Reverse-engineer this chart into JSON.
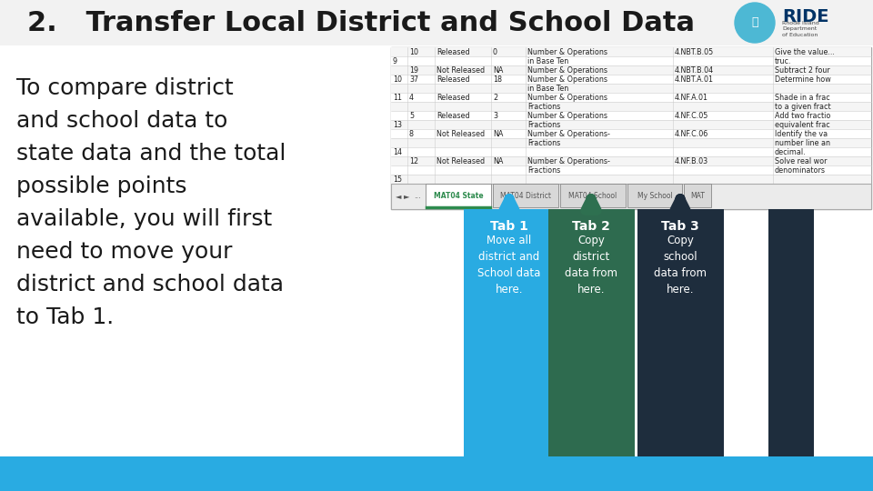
{
  "title": "2.   Transfer Local District and School Data",
  "title_fontsize": 22,
  "title_color": "#1a1a1a",
  "bg_color": "#ffffff",
  "bottom_bar_color": "#29abe2",
  "body_text_lines": [
    "To compare district",
    "and school data to",
    "state data and the total",
    "possible points",
    "available, you will first",
    "need to move your",
    "district and school data",
    "to Tab 1."
  ],
  "body_fontsize": 18,
  "body_color": "#1a1a1a",
  "tab_boxes": [
    {
      "label": "Tab 1",
      "desc": "Move all\ndistrict and\nSchool data\nhere.",
      "color": "#29abe2",
      "arrow_color": "#29abe2"
    },
    {
      "label": "Tab 2",
      "desc": "Copy\ndistrict\ndata from\nhere.",
      "color": "#2e6b4f",
      "arrow_color": "#2e7050"
    },
    {
      "label": "Tab 3",
      "desc": "Copy\nschool\ndata from\nhere.",
      "color": "#1e2d3d",
      "arrow_color": "#1e2d3d"
    }
  ],
  "sheet_rows": [
    [
      "",
      "10",
      "Released",
      "0",
      "Number & Operations",
      "4.NBT.B.05",
      "Give the value..."
    ],
    [
      "9",
      "",
      "",
      "",
      "in Base Ten",
      "",
      "truc."
    ],
    [
      "",
      "19",
      "Not Released",
      "NA",
      "Number & Operations",
      "4.NBT.B.04",
      "Subtract 2 four"
    ],
    [
      "10",
      "37",
      "Released",
      "18",
      "Number & Operations",
      "4.NBT.A.01",
      "Determine how"
    ],
    [
      "",
      "",
      "",
      "",
      "in Base Ten",
      "",
      ""
    ],
    [
      "11",
      "4",
      "Released",
      "2",
      "Number & Operations",
      "4.NF.A.01",
      "Shade in a frac"
    ],
    [
      "",
      "",
      "",
      "",
      "Fractions",
      "",
      "to a given fract"
    ],
    [
      "",
      "5",
      "Released",
      "3",
      "Number & Operations",
      "4.NF.C.05",
      "Add two fractio"
    ],
    [
      "13",
      "",
      "",
      "",
      "Fractions",
      "",
      "equivalent frac"
    ],
    [
      "",
      "8",
      "Not Released",
      "NA",
      "Number & Operations-",
      "4.NF.C.06",
      "Identify the va"
    ],
    [
      "",
      "",
      "",
      "",
      "Fractions",
      "",
      "number line an"
    ],
    [
      "14",
      "",
      "",
      "",
      "",
      "",
      "decimal."
    ],
    [
      "",
      "12",
      "Not Released",
      "NA",
      "Number & Operations-",
      "4.NF.B.03",
      "Solve real wor"
    ],
    [
      "",
      "",
      "",
      "",
      "Fractions",
      "",
      "denominators"
    ],
    [
      "15",
      "",
      "",
      "",
      "",
      "",
      ""
    ]
  ],
  "tab_labels": [
    "MAT04 State",
    "MAT04 District",
    "MAT04 School",
    "My School",
    "MAT"
  ],
  "active_tab_idx": 0,
  "active_tab_color": "#2e8b4e",
  "ride_circle_color": "#4db8d4",
  "ride_text_color": "#003366"
}
